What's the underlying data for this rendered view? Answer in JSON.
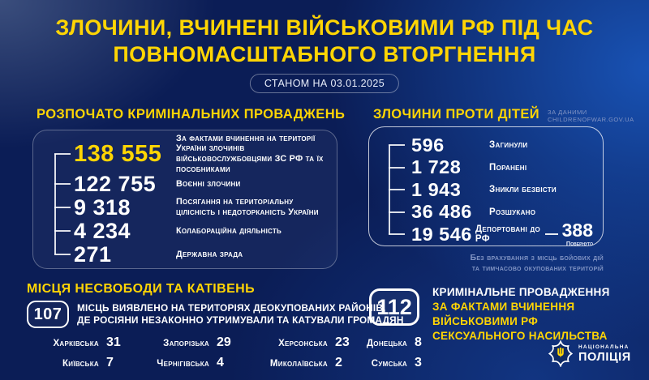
{
  "colors": {
    "accent_yellow": "#ffd504",
    "background_navy": "#0b1d56",
    "background_royal_blue": "#1955b9",
    "muted_blue_gray": "#8194c4"
  },
  "header": {
    "title_line1": "ЗЛОЧИНИ, ВЧИНЕНІ ВІЙСЬКОВИМИ РФ ПІД ЧАС",
    "title_line2": "ПОВНОМАСШТАБНОГО ВТОРГНЕННЯ",
    "date_badge": "СТАНОМ НА 03.01.2025"
  },
  "proceedings": {
    "heading": "РОЗПОЧАТО КРИМІНАЛЬНИХ ПРОВАДЖЕНЬ",
    "rows": [
      {
        "value": "138 555",
        "label": "За фактами вчинення на території України злочинів військовослужбовцями ЗС РФ та їх пособниками",
        "accent": true
      },
      {
        "value": "122 755",
        "label": "Воєнні злочини"
      },
      {
        "value": "9 318",
        "label": "Посягання на територіальну цілісність і недоторканість України"
      },
      {
        "value": "4 234",
        "label": "Колабораційна діяльність"
      },
      {
        "value": "271",
        "label": "Державна зрада"
      }
    ]
  },
  "children_crimes": {
    "heading": "ЗЛОЧИНИ ПРОТИ ДІТЕЙ",
    "source_line1": "ЗА ДАНИМИ",
    "source_line2": "CHILDRENOFWAR.GOV.UA",
    "rows": [
      {
        "value": "596",
        "label": "Загинули"
      },
      {
        "value": "1 728",
        "label": "Поранені"
      },
      {
        "value": "1 943",
        "label": "Зникли безвісти"
      },
      {
        "value": "36 486",
        "label": "Розшукано"
      },
      {
        "value": "19 546",
        "label": "Депортовані до РФ",
        "extra_value": "388",
        "extra_label": "Повернуто"
      }
    ],
    "footnote_line1": "Без врахування з місць бойових дій",
    "footnote_line2": "та тимчасово окупованих територій"
  },
  "detention": {
    "heading": "МІСЦЯ НЕСВОБОДИ ТА КАТІВЕНЬ",
    "count": "107",
    "description_line1": "МІСЦЬ ВИЯВЛЕНО НА ТЕРИТОРІЯХ ДЕОКУПОВАНИХ РАЙОНІВ,",
    "description_line2": "ДЕ РОСІЯНИ НЕЗАКОННО УТРИМУВАЛИ ТА КАТУВАЛИ ГРОМАДЯН",
    "regions": [
      {
        "name": "Харківська",
        "value": "31"
      },
      {
        "name": "Запорізька",
        "value": "29"
      },
      {
        "name": "Херсонська",
        "value": "23"
      },
      {
        "name": "Донецька",
        "value": "8"
      },
      {
        "name": "Київська",
        "value": "7"
      },
      {
        "name": "Чернігівська",
        "value": "4"
      },
      {
        "name": "Миколаївська",
        "value": "2"
      },
      {
        "name": "Сумська",
        "value": "3"
      }
    ]
  },
  "sexual_violence": {
    "count": "112",
    "line1": "КРИМІНАЛЬНЕ ПРОВАДЖЕННЯ",
    "line2": "ЗА ФАКТАМИ ВЧИНЕННЯ",
    "line3": "ВІЙСЬКОВИМИ РФ",
    "line4": "СЕКСУАЛЬНОГО НАСИЛЬСТВА"
  },
  "logo": {
    "line1": "НАЦІОНАЛЬНА",
    "line2": "ПОЛІЦІЯ"
  }
}
